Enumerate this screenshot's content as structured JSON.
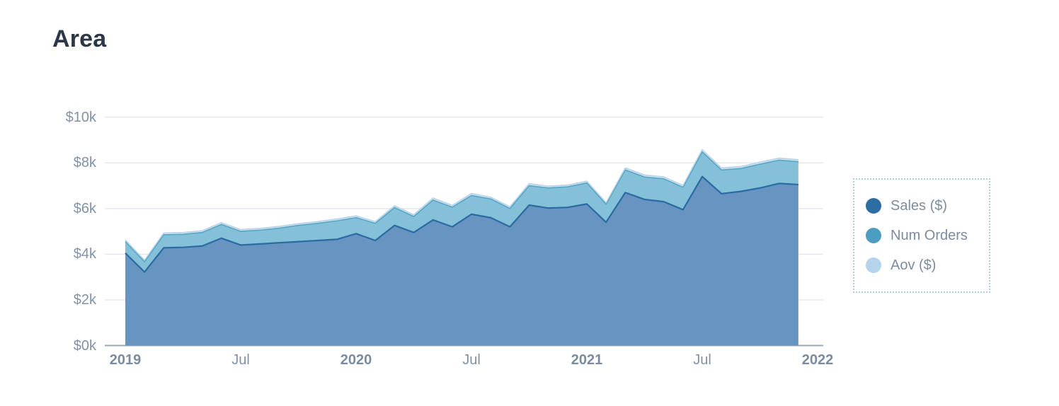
{
  "page_title": "Area",
  "legend": {
    "items": [
      {
        "label": "Sales ($)",
        "color": "#2e6da4",
        "texture": "solid"
      },
      {
        "label": "Num Orders",
        "color": "#4c9dc0",
        "texture": "solid"
      },
      {
        "label": "Aov ($)",
        "color": "#b5d3ea",
        "texture": "dotted"
      }
    ]
  },
  "chart_data": {
    "type": "area",
    "stacked": true,
    "title": "Area",
    "unit": "thousand dollars",
    "ylim": [
      0,
      10
    ],
    "grid": "horizontal",
    "legend_position": "right",
    "colors": {
      "gridline": "#e4e8ec",
      "axis_line": "#9aa7b5",
      "axis_text": "#8292a5"
    },
    "y_axis": {
      "ticks": [
        {
          "label": "$0k",
          "value": 0
        },
        {
          "label": "$2k",
          "value": 2
        },
        {
          "label": "$4k",
          "value": 4
        },
        {
          "label": "$6k",
          "value": 6
        },
        {
          "label": "$8k",
          "value": 8
        },
        {
          "label": "$10k",
          "value": 10
        }
      ]
    },
    "x_axis": {
      "ticks": [
        {
          "label": "2019",
          "month_index": 0,
          "bold": true
        },
        {
          "label": "Jul",
          "month_index": 6,
          "bold": false
        },
        {
          "label": "2020",
          "month_index": 12,
          "bold": true
        },
        {
          "label": "Jul",
          "month_index": 18,
          "bold": false
        },
        {
          "label": "2021",
          "month_index": 24,
          "bold": true
        },
        {
          "label": "Jul",
          "month_index": 30,
          "bold": false
        },
        {
          "label": "2022",
          "month_index": 36,
          "bold": true
        }
      ]
    },
    "x_months": [
      "Jan 2019",
      "Feb 2019",
      "Mar 2019",
      "Apr 2019",
      "May 2019",
      "Jun 2019",
      "Jul 2019",
      "Aug 2019",
      "Sep 2019",
      "Oct 2019",
      "Nov 2019",
      "Dec 2019",
      "Jan 2020",
      "Feb 2020",
      "Mar 2020",
      "Apr 2020",
      "May 2020",
      "Jun 2020",
      "Jul 2020",
      "Aug 2020",
      "Sep 2020",
      "Oct 2020",
      "Nov 2020",
      "Dec 2020",
      "Jan 2021",
      "Feb 2021",
      "Mar 2021",
      "Apr 2021",
      "May 2021",
      "Jun 2021",
      "Jul 2021",
      "Aug 2021",
      "Sep 2021",
      "Oct 2021",
      "Nov 2021",
      "Dec 2021"
    ],
    "series": [
      {
        "name": "Sales ($)",
        "fill": "#6794c1",
        "line": "#2b6ba3",
        "line_width": 2.2,
        "values": [
          4.05,
          3.22,
          4.28,
          4.3,
          4.36,
          4.7,
          4.4,
          4.45,
          4.5,
          4.55,
          4.6,
          4.65,
          4.9,
          4.6,
          5.26,
          4.95,
          5.5,
          5.2,
          5.75,
          5.6,
          5.2,
          6.15,
          6.02,
          6.05,
          6.2,
          5.4,
          6.7,
          6.4,
          6.3,
          5.95,
          7.4,
          6.65,
          6.75,
          6.9,
          7.1,
          7.05
        ]
      },
      {
        "name": "Num Orders",
        "fill": "#85c0d9",
        "line": "#57a5c5",
        "line_width": 1.6,
        "values": [
          0.5,
          0.45,
          0.57,
          0.57,
          0.59,
          0.6,
          0.6,
          0.6,
          0.64,
          0.71,
          0.75,
          0.81,
          0.7,
          0.75,
          0.78,
          0.7,
          0.87,
          0.86,
          0.82,
          0.82,
          0.8,
          0.85,
          0.88,
          0.9,
          0.92,
          0.79,
          0.99,
          0.98,
          1.0,
          0.98,
          1.08,
          1.04,
          1.0,
          1.04,
          1.02,
          1.0
        ]
      },
      {
        "name": "Aov ($)",
        "fill": "#cfe2f1",
        "line": "#b7d2e7",
        "line_width": 1.5,
        "values": [
          0.08,
          0.07,
          0.08,
          0.08,
          0.08,
          0.08,
          0.08,
          0.08,
          0.08,
          0.08,
          0.08,
          0.08,
          0.08,
          0.08,
          0.08,
          0.08,
          0.09,
          0.08,
          0.09,
          0.08,
          0.08,
          0.09,
          0.08,
          0.08,
          0.08,
          0.07,
          0.09,
          0.09,
          0.09,
          0.08,
          0.1,
          0.09,
          0.09,
          0.09,
          0.09,
          0.09
        ]
      }
    ]
  }
}
